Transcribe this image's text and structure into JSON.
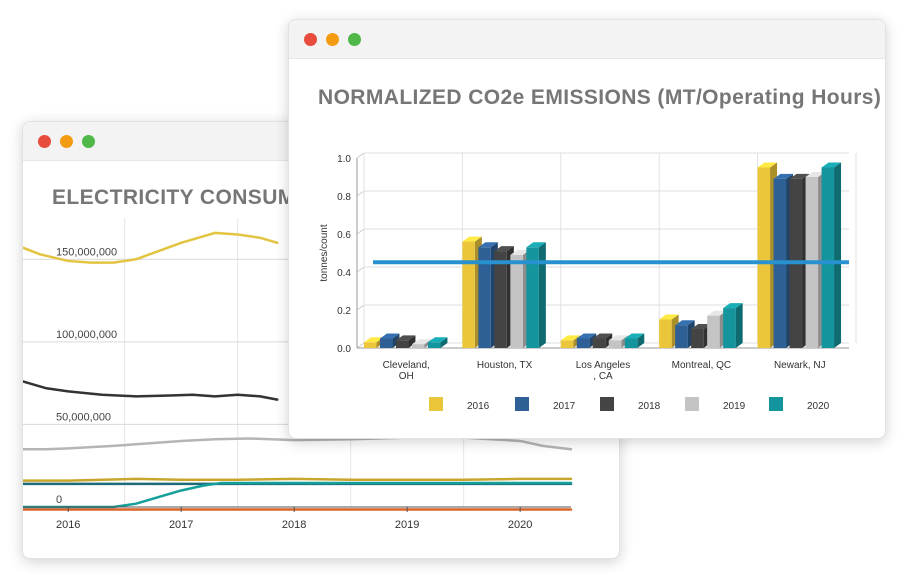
{
  "back_window": {
    "title": "ELECTRICITY CONSUMPTION",
    "chart_data": {
      "type": "line",
      "title": "ELECTRICITY CONSUMPTION",
      "y_tick_labels": [
        "150,000,000",
        "100,000,000",
        "50,000,000",
        "0"
      ],
      "x_tick_labels": [
        "2016",
        "2017",
        "2018",
        "2019",
        "2020"
      ],
      "ylim": [
        0,
        175000000
      ],
      "xlim": [
        2015.6,
        2020.45
      ],
      "grid": true,
      "series": [
        {
          "color": "#e3c440",
          "x": [
            2015.6,
            2015.75,
            2016.0,
            2016.2,
            2016.4,
            2016.6,
            2016.8,
            2017.0,
            2017.2,
            2017.3,
            2017.5,
            2017.7,
            2017.85
          ],
          "y": [
            157000000,
            153000000,
            149000000,
            148000000,
            148000000,
            150000000,
            155000000,
            160000000,
            164000000,
            166000000,
            165000000,
            163000000,
            160000000
          ]
        },
        {
          "color": "#333333",
          "x": [
            2015.6,
            2015.8,
            2016.0,
            2016.3,
            2016.6,
            2016.9,
            2017.1,
            2017.3,
            2017.5,
            2017.7,
            2017.85
          ],
          "y": [
            76000000,
            72000000,
            70000000,
            68000000,
            67000000,
            67500000,
            68000000,
            67000000,
            68000000,
            67000000,
            65000000
          ]
        },
        {
          "color": "#b5b5b5",
          "x": [
            2015.6,
            2015.8,
            2016.0,
            2016.4,
            2016.8,
            2017.0,
            2017.3,
            2017.6,
            2018.0,
            2018.5,
            2019.0,
            2019.5,
            2020.0,
            2020.2,
            2020.45
          ],
          "y": [
            35000000,
            35000000,
            35500000,
            37000000,
            39000000,
            40000000,
            41000000,
            41500000,
            40500000,
            41000000,
            42000000,
            42000000,
            40000000,
            37000000,
            35000000
          ]
        },
        {
          "color": "#c8a62e",
          "x": [
            2015.6,
            2016.0,
            2016.6,
            2017.0,
            2017.5,
            2018.0,
            2018.5,
            2019.0,
            2019.5,
            2020.0,
            2020.45
          ],
          "y": [
            16000000,
            16000000,
            17000000,
            16500000,
            16500000,
            17000000,
            16500000,
            16500000,
            16500000,
            17000000,
            17000000
          ]
        },
        {
          "color": "#1e6a78",
          "x": [
            2015.6,
            2020.45
          ],
          "y": [
            14000000,
            14000000
          ]
        },
        {
          "color": "#159f9a",
          "x": [
            2015.6,
            2016.4,
            2016.6,
            2016.8,
            2017.0,
            2017.2,
            2017.35,
            2017.6,
            2018.0,
            2019.0,
            2020.0,
            2020.45
          ],
          "y": [
            0,
            0,
            2000000,
            6000000,
            10000000,
            13000000,
            14500000,
            14500000,
            14500000,
            14500000,
            14500000,
            14500000
          ]
        },
        {
          "color": "#d9652b",
          "x": [
            2015.6,
            2020.45
          ],
          "y": [
            -1500000,
            -1500000
          ]
        }
      ]
    }
  },
  "front_window": {
    "title": "NORMALIZED CO2e EMISSIONS (MT/Operating Hours)",
    "chart_data": {
      "type": "bar",
      "title": "NORMALIZED CO2e EMISSIONS (MT/Operating Hours)",
      "ylabel": "tonnes/count",
      "xlabel": "",
      "ylim": [
        0,
        1.0
      ],
      "y_ticks": [
        "0.0",
        "0.2",
        "0.4",
        "0.6",
        "0.8",
        "1.0"
      ],
      "grid": true,
      "legend_position": "bottom",
      "categories": [
        [
          "Cleveland,",
          "OH"
        ],
        [
          "Houston, TX"
        ],
        [
          "Los Angeles",
          ", CA"
        ],
        [
          "Montreal, QC"
        ],
        [
          "Newark, NJ"
        ]
      ],
      "series": [
        {
          "name": "2016",
          "color": "#ecc63a",
          "values": [
            0.03,
            0.56,
            0.04,
            0.15,
            0.95
          ]
        },
        {
          "name": "2017",
          "color": "#2e5f95",
          "values": [
            0.05,
            0.53,
            0.05,
            0.12,
            0.89
          ]
        },
        {
          "name": "2018",
          "color": "#444444",
          "values": [
            0.04,
            0.51,
            0.05,
            0.1,
            0.89
          ]
        },
        {
          "name": "2019",
          "color": "#c4c4c4",
          "values": [
            0.02,
            0.49,
            0.04,
            0.17,
            0.9
          ]
        },
        {
          "name": "2020",
          "color": "#14949c",
          "values": [
            0.03,
            0.53,
            0.05,
            0.21,
            0.95
          ]
        }
      ],
      "reference_line": {
        "value": 0.43,
        "color": "#2792cf"
      }
    }
  }
}
